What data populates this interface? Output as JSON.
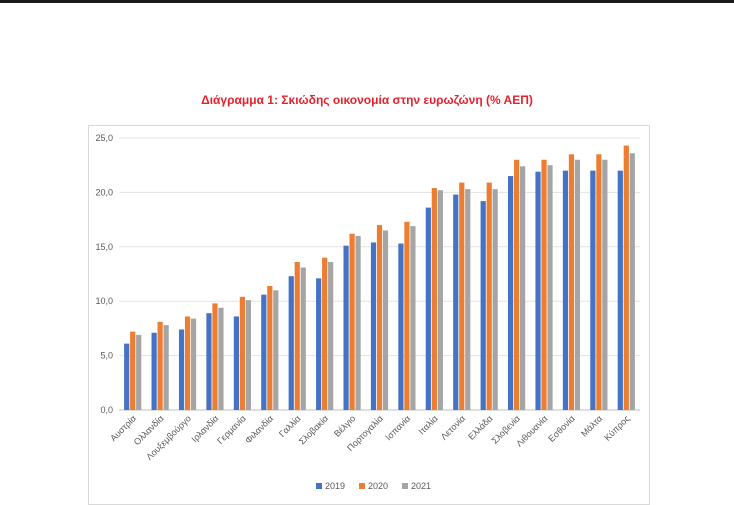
{
  "chart_data": {
    "type": "bar",
    "title": "Διάγραμμα 1: Σκιώδης οικονομία στην ευρωζώνη (% ΑΕΠ)",
    "categories": [
      "Αυστρία",
      "Ολλανδία",
      "Λουξεμβούργο",
      "Ιρλανδία",
      "Γερμανία",
      "Φιλανδία",
      "Γαλλία",
      "Σλοβακία",
      "Βέλγιο",
      "Πορτογαλία",
      "Ισπανία",
      "Ιταλία",
      "Λετονία",
      "Ελλάδα",
      "Σλοβενία",
      "Λιθουανία",
      "Εσθονία",
      "Μάλτα",
      "Κύπρος"
    ],
    "series": [
      {
        "name": "2019",
        "color": "#4472c4",
        "values": [
          6.1,
          7.1,
          7.4,
          8.9,
          8.6,
          10.6,
          12.3,
          12.1,
          15.1,
          15.4,
          15.3,
          18.6,
          19.8,
          19.2,
          21.5,
          21.9,
          22.0,
          22.0,
          22.0
        ]
      },
      {
        "name": "2020",
        "color": "#ed7d31",
        "values": [
          7.2,
          8.1,
          8.6,
          9.8,
          10.4,
          11.4,
          13.6,
          14.0,
          16.2,
          17.0,
          17.3,
          20.4,
          20.9,
          20.9,
          23.0,
          23.0,
          23.5,
          23.5,
          24.3
        ]
      },
      {
        "name": "2021",
        "color": "#a5a5a5",
        "values": [
          6.9,
          7.8,
          8.4,
          9.4,
          10.1,
          11.0,
          13.1,
          13.6,
          16.0,
          16.5,
          16.9,
          20.2,
          20.3,
          20.3,
          22.4,
          22.5,
          23.0,
          23.0,
          23.6
        ]
      }
    ],
    "yticks": [
      "0,0",
      "5,0",
      "10,0",
      "15,0",
      "20,0",
      "25,0"
    ],
    "ylim": [
      0,
      25
    ],
    "grid": true,
    "legend_position": "bottom"
  }
}
